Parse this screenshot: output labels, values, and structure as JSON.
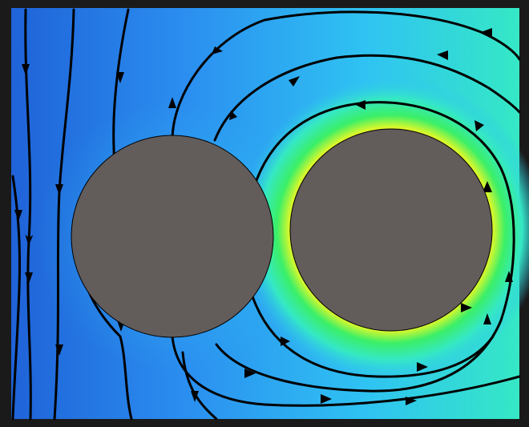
{
  "figure": {
    "frame_color": "#1a1a1a",
    "obstacle_color": "#625c5b",
    "streamline_color": "#000000",
    "colormap": [
      "#1f63d8",
      "#2b8ff0",
      "#2fc3f2",
      "#35e8c5",
      "#3bef68",
      "#d8f82c",
      "#ffb21b",
      "#ff4b10"
    ],
    "obstacles": [
      {
        "name": "left-cylinder"
      },
      {
        "name": "right-cylinder"
      }
    ],
    "streamline_count": 10
  }
}
